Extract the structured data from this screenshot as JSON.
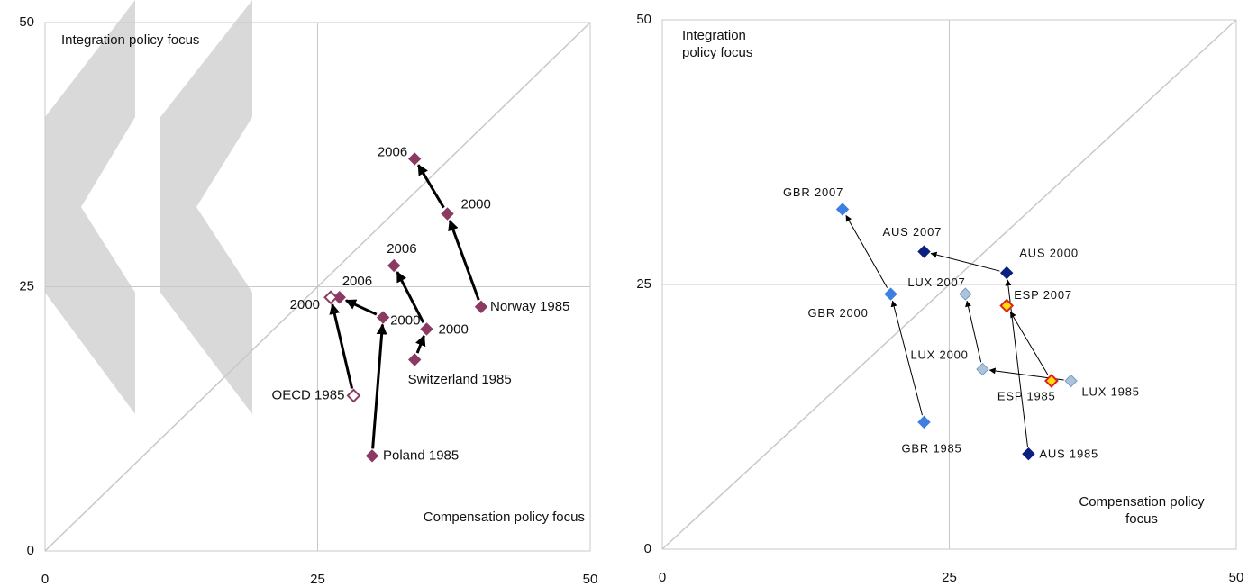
{
  "chart_data": [
    {
      "type": "scatter",
      "annotations": [
        "Integration policy focus",
        "Compensation policy focus"
      ],
      "xlim": [
        0,
        50
      ],
      "ylim": [
        0,
        50
      ],
      "xticks": [
        0,
        25,
        50
      ],
      "yticks": [
        0,
        25,
        50
      ],
      "grid": true,
      "series": [
        {
          "color": "#8b3a62",
          "labels": [
            "Norway 1985",
            "2000",
            "2006"
          ],
          "x": [
            40.0,
            36.9,
            33.9
          ],
          "values": [
            23.1,
            31.9,
            37.1
          ]
        },
        {
          "color": "#8b3a62",
          "labels": [
            "Switzerland 1985",
            "2000",
            "2006"
          ],
          "x": [
            33.9,
            35.0,
            32.0
          ],
          "values": [
            18.1,
            21.0,
            27.0
          ]
        },
        {
          "color": "#8b3a62",
          "labels": [
            "Poland 1985",
            "2000",
            "2006"
          ],
          "x": [
            30.0,
            31.0,
            27.0
          ],
          "values": [
            9.0,
            22.1,
            24.0
          ]
        },
        {
          "color": "#8b3a62",
          "hollow": true,
          "labels": [
            "OECD 1985",
            "2000"
          ],
          "x": [
            28.3,
            26.2
          ],
          "values": [
            14.7,
            24.0
          ]
        }
      ]
    },
    {
      "type": "scatter",
      "annotations": [
        "Integration policy focus",
        "Compensation policy focus"
      ],
      "xlim": [
        0,
        50
      ],
      "ylim": [
        0,
        50
      ],
      "xticks": [
        0,
        25,
        50
      ],
      "yticks": [
        0,
        25,
        50
      ],
      "grid": true,
      "series": [
        {
          "color": "#3f7fe0",
          "labels": [
            "GBR 1985",
            "GBR 2000",
            "GBR 2007"
          ],
          "x": [
            22.8,
            19.9,
            15.7
          ],
          "values": [
            12.0,
            24.1,
            32.1
          ]
        },
        {
          "color": "#0b1f80",
          "labels": [
            "AUS 1985",
            "AUS 2000",
            "AUS 2007"
          ],
          "x": [
            31.9,
            30.0,
            22.8
          ],
          "values": [
            9.0,
            26.1,
            28.1
          ]
        },
        {
          "color": "#a9c4dc",
          "labels": [
            "LUX 1985",
            "LUX 2000",
            "LUX 2007"
          ],
          "x": [
            35.6,
            27.9,
            26.4
          ],
          "values": [
            15.9,
            17.0,
            24.1
          ]
        },
        {
          "color": "#ffe000",
          "labels": [
            "ESP 1985",
            "ESP 2007"
          ],
          "x": [
            33.9,
            30.0
          ],
          "values": [
            15.9,
            23.0
          ]
        }
      ]
    }
  ]
}
